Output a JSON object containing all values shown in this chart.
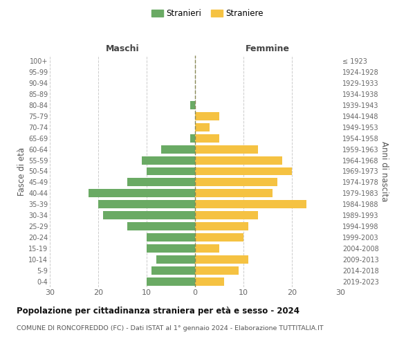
{
  "age_groups": [
    "0-4",
    "5-9",
    "10-14",
    "15-19",
    "20-24",
    "25-29",
    "30-34",
    "35-39",
    "40-44",
    "45-49",
    "50-54",
    "55-59",
    "60-64",
    "65-69",
    "70-74",
    "75-79",
    "80-84",
    "85-89",
    "90-94",
    "95-99",
    "100+"
  ],
  "birth_years": [
    "2019-2023",
    "2014-2018",
    "2009-2013",
    "2004-2008",
    "1999-2003",
    "1994-1998",
    "1989-1993",
    "1984-1988",
    "1979-1983",
    "1974-1978",
    "1969-1973",
    "1964-1968",
    "1959-1963",
    "1954-1958",
    "1949-1953",
    "1944-1948",
    "1939-1943",
    "1934-1938",
    "1929-1933",
    "1924-1928",
    "≤ 1923"
  ],
  "males": [
    10,
    9,
    8,
    10,
    10,
    14,
    19,
    20,
    22,
    14,
    10,
    11,
    7,
    1,
    0,
    0,
    1,
    0,
    0,
    0,
    0
  ],
  "females": [
    6,
    9,
    11,
    5,
    10,
    11,
    13,
    23,
    16,
    17,
    20,
    18,
    13,
    5,
    3,
    5,
    0,
    0,
    0,
    0,
    0
  ],
  "male_color": "#6aaa64",
  "female_color": "#f5c242",
  "center_line_color": "#888855",
  "grid_color": "#cccccc",
  "background_color": "#ffffff",
  "title": "Popolazione per cittadinanza straniera per età e sesso - 2024",
  "subtitle": "COMUNE DI RONCOFREDDO (FC) - Dati ISTAT al 1° gennaio 2024 - Elaborazione TUTTITALIA.IT",
  "xlabel_left": "Maschi",
  "xlabel_right": "Femmine",
  "ylabel_left": "Fasce di età",
  "ylabel_right": "Anni di nascita",
  "legend_male": "Stranieri",
  "legend_female": "Straniere",
  "xlim": 30,
  "bar_height": 0.75
}
